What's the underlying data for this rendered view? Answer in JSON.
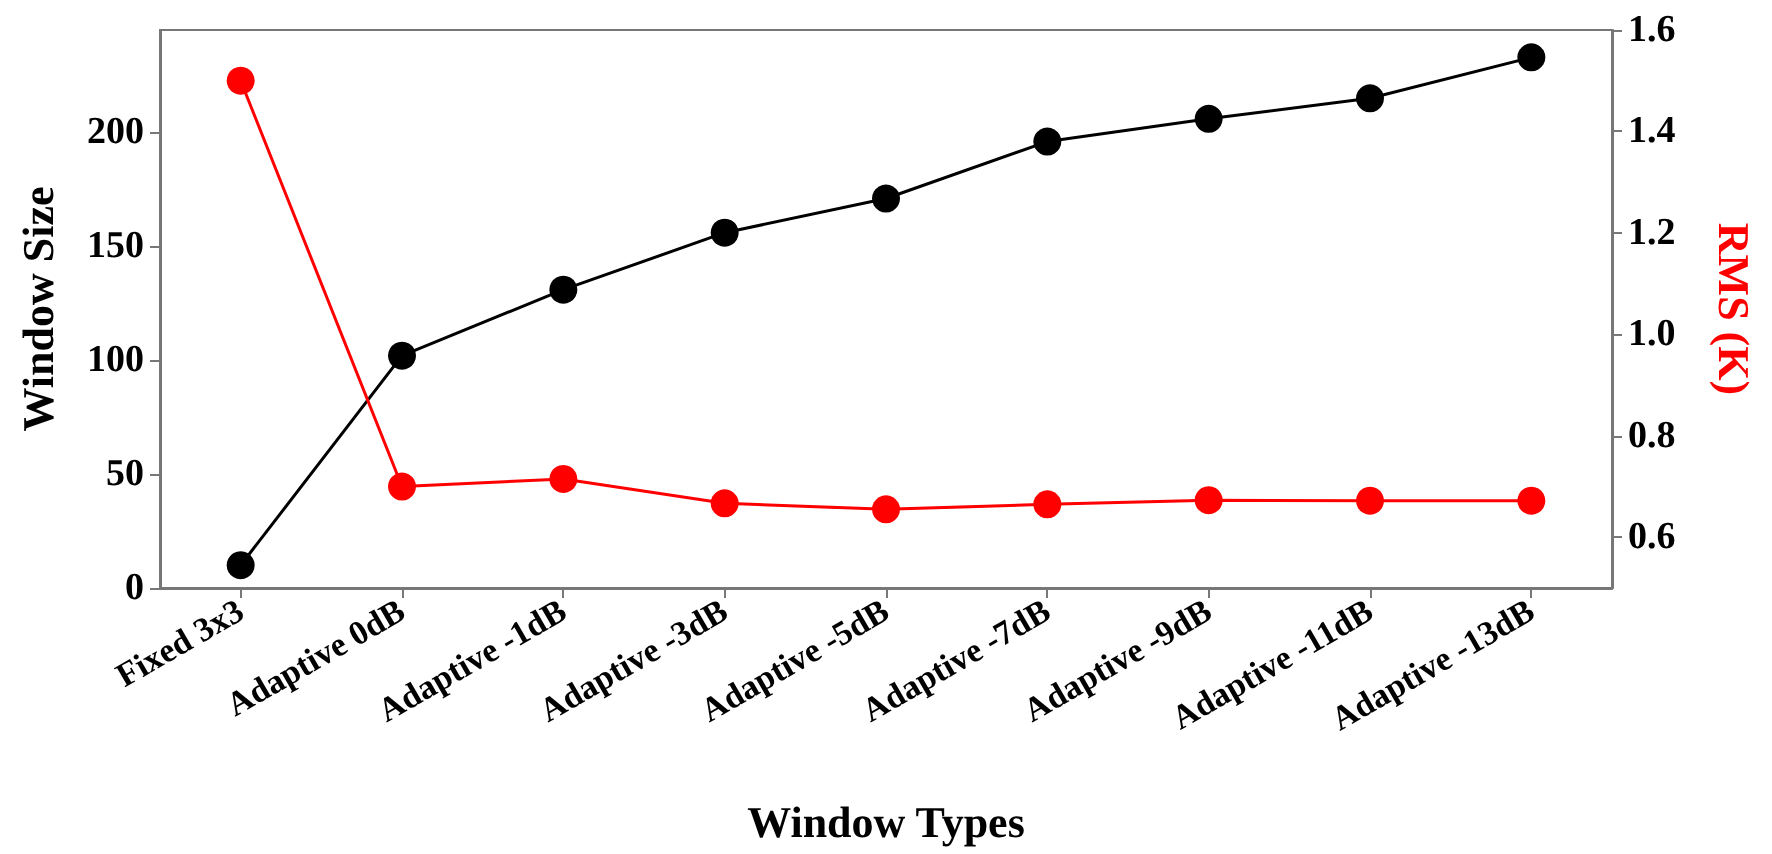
{
  "chart_data": {
    "type": "line",
    "xlabel": "Window Types",
    "ylabel": "Window Size",
    "y2label": "RMS (K)",
    "categories": [
      "Fixed 3x3",
      "Adaptive 0dB",
      "Adaptive -1dB",
      "Adaptive -3dB",
      "Adaptive -5dB",
      "Adaptive -7dB",
      "Adaptive -9dB",
      "Adaptive -11dB",
      "Adaptive -13dB"
    ],
    "series": [
      {
        "color": "#000000",
        "values": [
          10,
          102,
          131,
          156,
          171,
          196,
          206,
          215,
          233
        ]
      },
      {
        "color": "#ff0000",
        "axis": "y2",
        "values": [
          1.5,
          0.7,
          0.715,
          0.667,
          0.655,
          0.665,
          0.673,
          0.672,
          0.672
        ]
      }
    ],
    "ylim": [
      0,
      245
    ],
    "yticks": [
      0,
      50,
      100,
      150,
      200
    ],
    "y2lim": [
      0.5,
      1.6
    ],
    "y2ticks": [
      0.6,
      0.8,
      {
        "value": 1,
        "label": "1.0"
      },
      1.2,
      1.4,
      1.6
    ],
    "grid": false,
    "marker": "circle",
    "line_style": "solid"
  }
}
